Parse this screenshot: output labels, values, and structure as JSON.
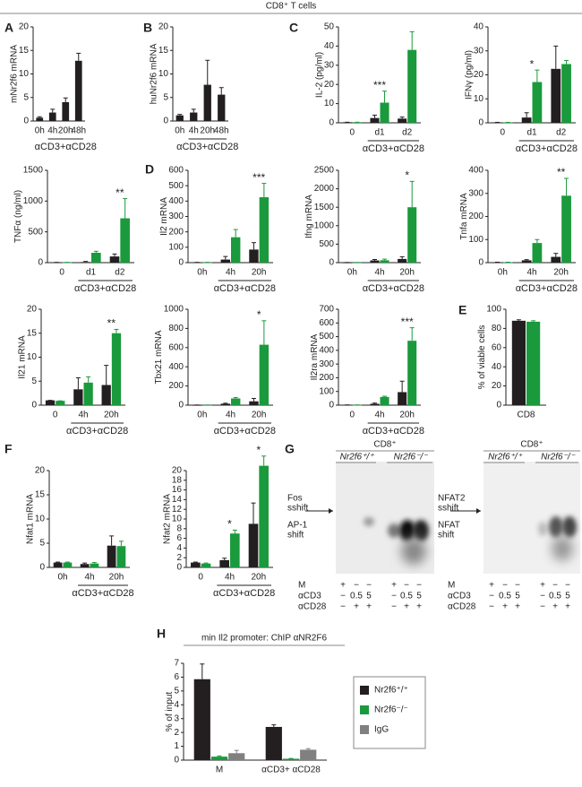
{
  "header": {
    "title": "CD8⁺ T cells"
  },
  "chart_data": [
    {
      "type": "bar",
      "panel": "A",
      "y_label": "mNr2f6 mRNA",
      "categories": [
        "0h",
        "4h",
        "20h",
        "48h"
      ],
      "values": [
        0.7,
        1.8,
        4,
        12.8
      ],
      "errors": [
        0.2,
        0.7,
        0.9,
        1.6
      ],
      "color": "#231f20",
      "group_label": "αCD3+αCD28",
      "ylim": [
        0,
        20
      ],
      "yticks": [
        0,
        5,
        10,
        15,
        20
      ]
    },
    {
      "type": "bar",
      "panel": "B",
      "y_label": "huNr2f6 mRNA",
      "categories": [
        "0h",
        "4h",
        "20h",
        "48h"
      ],
      "values": [
        1.2,
        1.8,
        7.7,
        5.6
      ],
      "errors": [
        0.2,
        0.7,
        5.2,
        1.5
      ],
      "color": "#231f20",
      "group_label": "αCD3+αCD28",
      "ylim": [
        0,
        20
      ],
      "yticks": [
        0,
        5,
        10,
        15,
        20
      ]
    },
    {
      "type": "bar",
      "panel": "C",
      "y_label": "IL-2 (pg/ml)",
      "categories": [
        "0",
        "d1",
        "d2"
      ],
      "series": [
        {
          "color": "#231f20",
          "values": [
            0.3,
            2.5,
            2.2
          ],
          "errors": [
            0,
            1.5,
            0.8
          ]
        },
        {
          "color": "#1a9a3c",
          "values": [
            0.3,
            10.5,
            38
          ],
          "errors": [
            0,
            6,
            9.5
          ]
        }
      ],
      "group_label": "αCD3+αCD28",
      "annotations": [
        {
          "text": "***",
          "category": "d1"
        }
      ],
      "ylim": [
        0,
        50
      ],
      "yticks": [
        0,
        10,
        20,
        30,
        40,
        50
      ]
    },
    {
      "type": "bar",
      "y_label": "IFNγ (pg/ml)",
      "categories": [
        "0",
        "d1",
        "d2"
      ],
      "series": [
        {
          "color": "#231f20",
          "values": [
            0.2,
            2.2,
            22.5
          ],
          "errors": [
            0,
            2,
            9.5
          ]
        },
        {
          "color": "#1a9a3c",
          "values": [
            0.2,
            17,
            24.5
          ],
          "errors": [
            0,
            5,
            1.5
          ]
        }
      ],
      "group_label": "αCD3+αCD28",
      "annotations": [
        {
          "text": "*",
          "category": "d1"
        }
      ],
      "ylim": [
        0,
        40
      ],
      "yticks": [
        0,
        10,
        20,
        30,
        40
      ]
    },
    {
      "type": "bar",
      "y_label": "TNFα (ng/ml)",
      "categories": [
        "0",
        "d1",
        "d2"
      ],
      "series": [
        {
          "color": "#231f20",
          "values": [
            5,
            10,
            100
          ],
          "errors": [
            0,
            10,
            40
          ]
        },
        {
          "color": "#1a9a3c",
          "values": [
            5,
            160,
            720
          ],
          "errors": [
            0,
            25,
            320
          ]
        }
      ],
      "group_label": "αCD3+αCD28",
      "annotations": [
        {
          "text": "**",
          "category": "d2"
        }
      ],
      "ylim": [
        0,
        1500
      ],
      "yticks": [
        0,
        500,
        1000,
        1500
      ]
    },
    {
      "type": "bar",
      "panel": "D",
      "y_label": "Il2 mRNA",
      "categories": [
        "0h",
        "4h",
        "20h"
      ],
      "series": [
        {
          "color": "#231f20",
          "values": [
            2,
            20,
            85
          ],
          "errors": [
            0,
            20,
            45
          ]
        },
        {
          "color": "#1a9a3c",
          "values": [
            2,
            165,
            425
          ],
          "errors": [
            0,
            50,
            90
          ]
        }
      ],
      "group_label": "αCD3+αCD28",
      "annotations": [
        {
          "text": "***",
          "category": "20h"
        }
      ],
      "ylim": [
        0,
        600
      ],
      "yticks": [
        0,
        100,
        200,
        300,
        400,
        500,
        600
      ]
    },
    {
      "type": "bar",
      "y_label": "Ifng mRNA",
      "categories": [
        "0h",
        "4h",
        "20h"
      ],
      "series": [
        {
          "color": "#231f20",
          "values": [
            5,
            60,
            100
          ],
          "errors": [
            0,
            25,
            60
          ]
        },
        {
          "color": "#1a9a3c",
          "values": [
            5,
            65,
            1500
          ],
          "errors": [
            0,
            30,
            700
          ]
        }
      ],
      "group_label": "αCD3+αCD28",
      "annotations": [
        {
          "text": "*",
          "category": "20h"
        }
      ],
      "ylim": [
        0,
        2500
      ],
      "yticks": [
        0,
        500,
        1000,
        1500,
        2000,
        2500
      ]
    },
    {
      "type": "bar",
      "y_label": "Tnfa mRNA",
      "categories": [
        "0h",
        "4h",
        "20h"
      ],
      "series": [
        {
          "color": "#231f20",
          "values": [
            2,
            10,
            25
          ],
          "errors": [
            0,
            3,
            15
          ]
        },
        {
          "color": "#1a9a3c",
          "values": [
            2,
            85,
            290
          ],
          "errors": [
            0,
            15,
            75
          ]
        }
      ],
      "group_label": "αCD3+αCD28",
      "annotations": [
        {
          "text": "**",
          "category": "20h"
        }
      ],
      "ylim": [
        0,
        400
      ],
      "yticks": [
        0,
        100,
        200,
        300,
        400
      ]
    },
    {
      "type": "bar",
      "y_label": "Il21 mRNA",
      "categories": [
        "0",
        "4h",
        "20h"
      ],
      "series": [
        {
          "color": "#231f20",
          "values": [
            1,
            3.3,
            4.2
          ],
          "errors": [
            0,
            2.4,
            4.1
          ]
        },
        {
          "color": "#1a9a3c",
          "values": [
            0.9,
            4.7,
            15
          ],
          "errors": [
            0,
            1.2,
            0.8
          ]
        }
      ],
      "group_label": "αCD3+αCD28",
      "annotations": [
        {
          "text": "**",
          "category": "20h"
        }
      ],
      "ylim": [
        0,
        20
      ],
      "yticks": [
        0,
        5,
        10,
        15,
        20
      ]
    },
    {
      "type": "bar",
      "y_label": "Tbx21 mRNA",
      "categories": [
        "0h",
        "4h",
        "20h"
      ],
      "series": [
        {
          "color": "#231f20",
          "values": [
            2,
            15,
            40
          ],
          "errors": [
            0,
            5,
            30
          ]
        },
        {
          "color": "#1a9a3c",
          "values": [
            2,
            70,
            630
          ],
          "errors": [
            0,
            10,
            250
          ]
        }
      ],
      "group_label": "αCD3+αCD28",
      "annotations": [
        {
          "text": "*",
          "category": "20h"
        }
      ],
      "ylim": [
        0,
        1000
      ],
      "yticks": [
        0,
        200,
        400,
        600,
        800,
        1000
      ]
    },
    {
      "type": "bar",
      "y_label": "Il2ra mRNA",
      "categories": [
        "0",
        "4h",
        "20h"
      ],
      "series": [
        {
          "color": "#231f20",
          "values": [
            2,
            10,
            95
          ],
          "errors": [
            0,
            5,
            80
          ]
        },
        {
          "color": "#1a9a3c",
          "values": [
            2,
            60,
            470
          ],
          "errors": [
            0,
            5,
            95
          ]
        }
      ],
      "group_label": "αCD3+αCD28",
      "annotations": [
        {
          "text": "***",
          "category": "20h"
        }
      ],
      "ylim": [
        0,
        700
      ],
      "yticks": [
        0,
        100,
        200,
        300,
        400,
        500,
        600,
        700
      ]
    },
    {
      "type": "bar",
      "panel": "E",
      "y_label": "% of viable cells",
      "categories": [
        "CD8"
      ],
      "series": [
        {
          "color": "#231f20",
          "values": [
            88
          ],
          "errors": [
            1
          ]
        },
        {
          "color": "#1a9a3c",
          "values": [
            87
          ],
          "errors": [
            1
          ]
        }
      ],
      "ylim": [
        0,
        100
      ],
      "yticks": [
        0,
        20,
        40,
        60,
        80,
        100
      ]
    },
    {
      "type": "bar",
      "panel": "F",
      "y_label": "Nfat1 mRNA",
      "categories": [
        "0h",
        "4h",
        "20h"
      ],
      "series": [
        {
          "color": "#231f20",
          "values": [
            1,
            0.7,
            4.5
          ],
          "errors": [
            0.1,
            0.2,
            2
          ]
        },
        {
          "color": "#1a9a3c",
          "values": [
            1,
            0.8,
            4.4
          ],
          "errors": [
            0.1,
            0.2,
            1
          ]
        }
      ],
      "group_label": "αCD3+αCD28",
      "ylim": [
        0,
        20
      ],
      "yticks": [
        0,
        5,
        10,
        15,
        20
      ]
    },
    {
      "type": "bar",
      "y_label": "Nfat2 mRNA",
      "categories": [
        "0",
        "4h",
        "20h"
      ],
      "series": [
        {
          "color": "#231f20",
          "values": [
            1,
            1.5,
            9
          ],
          "errors": [
            0.1,
            0.4,
            4.3
          ]
        },
        {
          "color": "#1a9a3c",
          "values": [
            0.8,
            7,
            21
          ],
          "errors": [
            0.1,
            0.7,
            2
          ]
        }
      ],
      "group_label": "αCD3+αCD28",
      "annotations": [
        {
          "text": "*",
          "category": "4h"
        },
        {
          "text": "*",
          "category": "20h"
        }
      ],
      "ylim": [
        0,
        20
      ],
      "yticks": [
        0,
        2,
        4,
        6,
        8,
        10,
        12,
        14,
        16,
        18,
        20
      ]
    },
    {
      "type": "bar",
      "panel": "H",
      "title": "min Il2 promoter: ChIP αNR2F6",
      "y_label": "% of input",
      "categories": [
        "M",
        "αCD3+ αCD28"
      ],
      "series": [
        {
          "name": "Nr2f6⁺/⁺",
          "color": "#231f20",
          "values": [
            5.85,
            2.4
          ],
          "errors": [
            1.1,
            0.15
          ]
        },
        {
          "name": "Nr2f6⁻/⁻",
          "color": "#1a9a3c",
          "values": [
            0.25,
            0.1
          ],
          "errors": [
            0.05,
            0.02
          ]
        },
        {
          "name": "IgG",
          "color": "#808080",
          "values": [
            0.5,
            0.75
          ],
          "errors": [
            0.2,
            0.08
          ]
        }
      ],
      "legend": "right",
      "ylim": [
        0,
        7
      ],
      "yticks": [
        0,
        1,
        2,
        3,
        4,
        5,
        6,
        7
      ]
    }
  ],
  "gel_panel": {
    "panel": "G",
    "gels": [
      {
        "title": "CD8⁺",
        "groups": [
          "Nr2f6⁺/⁺",
          "Nr2f6⁻/⁻"
        ],
        "bands": [
          {
            "lines": [
              "Fos",
              "sshift"
            ]
          },
          {
            "lines": [
              "AP-1",
              "shift"
            ]
          }
        ],
        "rows": [
          {
            "label": "M",
            "cells": [
              "+",
              "−",
              "−",
              "+",
              "−",
              "−"
            ]
          },
          {
            "label": "αCD3",
            "cells": [
              "−",
              "0.5",
              "5",
              "−",
              "0.5",
              "5"
            ]
          },
          {
            "label": "αCD28",
            "cells": [
              "−",
              "+",
              "+",
              "−",
              "+",
              "+"
            ]
          }
        ]
      },
      {
        "title": "CD8⁺",
        "groups": [
          "Nr2f6⁺/⁺",
          "Nr2f6⁻/⁻"
        ],
        "bands": [
          {
            "lines": [
              "NFAT2",
              "sshift"
            ]
          },
          {
            "lines": [
              "NFAT",
              "shift"
            ]
          }
        ],
        "rows": [
          {
            "label": "M",
            "cells": [
              "+",
              "−",
              "−",
              "+",
              "−",
              "−"
            ]
          },
          {
            "label": "αCD3",
            "cells": [
              "−",
              "0.5",
              "5",
              "−",
              "0.5",
              "5"
            ]
          },
          {
            "label": "αCD28",
            "cells": [
              "−",
              "+",
              "+",
              "−",
              "+",
              "+"
            ]
          }
        ]
      }
    ]
  }
}
